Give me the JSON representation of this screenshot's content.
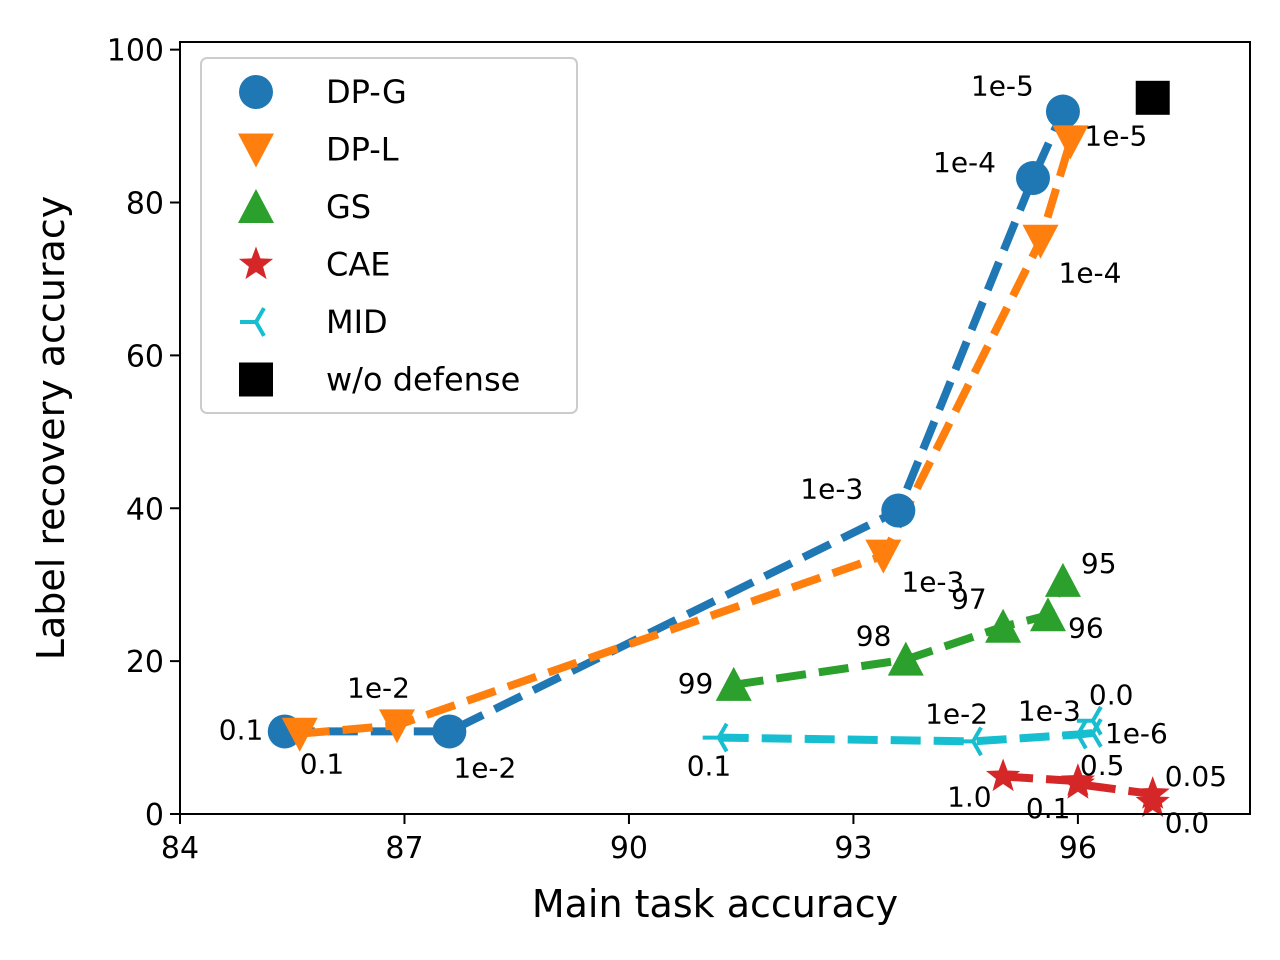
{
  "chart_data": {
    "type": "scatter",
    "xlabel": "Main task accuracy",
    "ylabel": "Label recovery accuracy",
    "xlim": [
      84,
      98.3
    ],
    "ylim": [
      0,
      101
    ],
    "xticks": [
      "84",
      "87",
      "90",
      "93",
      "96"
    ],
    "yticks": [
      "0",
      "20",
      "40",
      "60",
      "80",
      "100"
    ],
    "legend_position": "top-left",
    "series": [
      {
        "name": "DP-G",
        "color": "#1f77b4",
        "marker": "circle",
        "line": "dashed",
        "points": [
          {
            "x": 85.4,
            "y": 10.8,
            "label": "0.1"
          },
          {
            "x": 87.6,
            "y": 10.8,
            "label": "1e-2"
          },
          {
            "x": 93.6,
            "y": 39.7,
            "label": "1e-3"
          },
          {
            "x": 95.4,
            "y": 83.2,
            "label": "1e-4"
          },
          {
            "x": 95.8,
            "y": 91.9,
            "label": "1e-5"
          }
        ]
      },
      {
        "name": "DP-L",
        "color": "#ff7f0e",
        "marker": "triangle-down",
        "line": "dashed",
        "points": [
          {
            "x": 85.6,
            "y": 10.5,
            "label": "0.1"
          },
          {
            "x": 86.9,
            "y": 11.6,
            "label": "1e-2"
          },
          {
            "x": 93.4,
            "y": 33.8,
            "label": "1e-3"
          },
          {
            "x": 95.5,
            "y": 75.0,
            "label": "1e-4"
          },
          {
            "x": 95.9,
            "y": 88.0,
            "label": "1e-5"
          }
        ]
      },
      {
        "name": "GS",
        "color": "#2ca02c",
        "marker": "triangle-up",
        "line": "dashed",
        "points": [
          {
            "x": 91.4,
            "y": 16.9,
            "label": "99"
          },
          {
            "x": 93.7,
            "y": 20.2,
            "label": "98"
          },
          {
            "x": 95.0,
            "y": 24.5,
            "label": "97"
          },
          {
            "x": 95.6,
            "y": 26.0,
            "label": "96"
          },
          {
            "x": 95.8,
            "y": 30.5,
            "label": "95"
          }
        ]
      },
      {
        "name": "CAE",
        "color": "#d62728",
        "marker": "star",
        "line": "dashed",
        "points": [
          {
            "x": 95.0,
            "y": 4.9,
            "label": "1.0"
          },
          {
            "x": 96.0,
            "y": 4.3,
            "label": "0.5"
          },
          {
            "x": 96.0,
            "y": 3.9,
            "label": "0.1"
          },
          {
            "x": 97.0,
            "y": 2.6,
            "label": "0.05"
          },
          {
            "x": 97.0,
            "y": 1.5,
            "label": "0.0"
          }
        ]
      },
      {
        "name": "MID",
        "color": "#17becf",
        "marker": "tri-right",
        "line": "dashed",
        "points": [
          {
            "x": 91.2,
            "y": 10.0,
            "label": "0.1"
          },
          {
            "x": 94.6,
            "y": 9.5,
            "label": "1e-2"
          },
          {
            "x": 96.0,
            "y": 10.4,
            "label": "1e-3"
          },
          {
            "x": 96.2,
            "y": 10.6,
            "label": "1e-6"
          },
          {
            "x": 96.2,
            "y": 12.2,
            "label": "0.0"
          }
        ]
      },
      {
        "name": "w/o defense",
        "color": "#000000",
        "marker": "square",
        "line": "none",
        "points": [
          {
            "x": 97.0,
            "y": 93.7
          }
        ]
      }
    ]
  }
}
